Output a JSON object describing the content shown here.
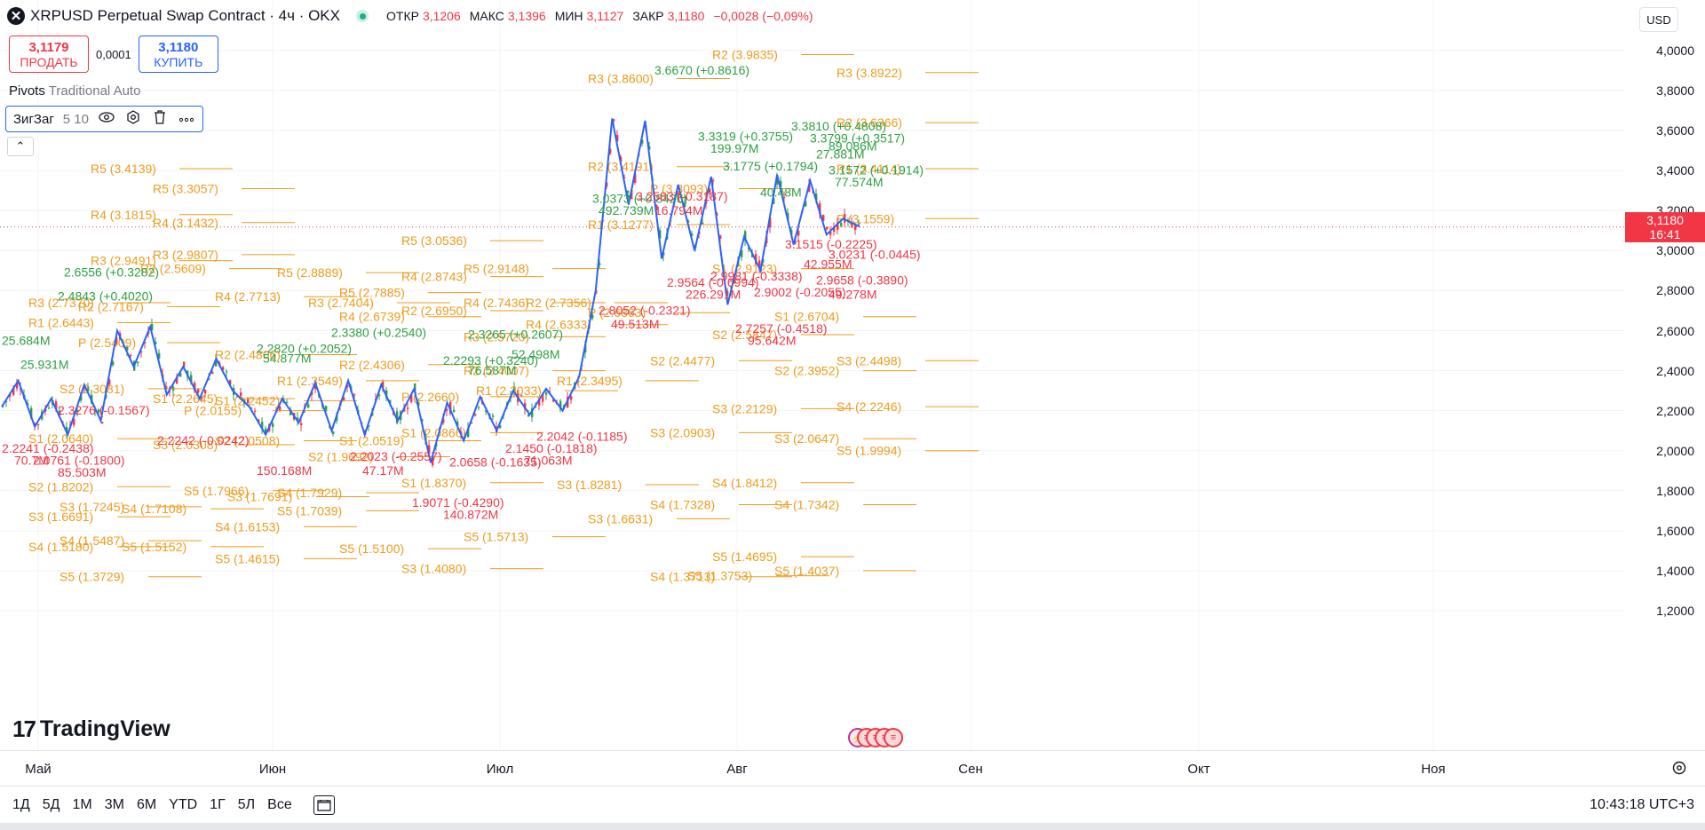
{
  "symbol": {
    "icon": "xrp-logo-icon",
    "logo_glyph": "✕",
    "title": "XRPUSD Perpetual Swap Contract · 4ч · OKX",
    "open_label": "ОТКР",
    "open": "3,1206",
    "high_label": "МАКС",
    "high": "3,1396",
    "low_label": "МИН",
    "low": "3,1127",
    "close_label": "ЗАКР",
    "close": "3,1180",
    "change": "−0,0028 (−0,09%)"
  },
  "trade": {
    "sell_price": "3,1179",
    "sell_label": "ПРОДАТЬ",
    "spread": "0,0001",
    "buy_price": "3,1180",
    "buy_label": "КУПИТЬ"
  },
  "indicators": {
    "pivots_name": "Pivots",
    "pivots_params": "Traditional Auto",
    "zigzag_name": "ЗигЗаг",
    "zigzag_params": "5 10",
    "icons": [
      "eye-icon",
      "settings-icon",
      "trash-icon",
      "more-icon"
    ],
    "collapse_glyph": "⌃"
  },
  "currency": "USD",
  "price_axis": {
    "ticks": [
      "4,0000",
      "3,8000",
      "3,6000",
      "3,4000",
      "3,2000",
      "3,0000",
      "2,8000",
      "2,6000",
      "2,4000",
      "2,2000",
      "2,0000",
      "1,8000",
      "1,6000",
      "1,4000",
      "1,2000"
    ],
    "current_price": "3,1180",
    "countdown": "16:41"
  },
  "time_axis": {
    "ticks": [
      "Май",
      "Июн",
      "Июл",
      "Авг",
      "Сен",
      "Окт",
      "Ноя"
    ]
  },
  "bottom_bar": {
    "ranges": [
      "1Д",
      "5Д",
      "1М",
      "3М",
      "6М",
      "YTD",
      "1Г",
      "5Л",
      "Все"
    ],
    "clock": "10:43:18 UTC+3"
  },
  "branding": {
    "logo_text": "TradingView",
    "logo_mark": "17"
  },
  "colors": {
    "up": "#2ea043",
    "down": "#f23645",
    "pivot": "#ef9b1c",
    "zigzag": "#2962ff",
    "accent": "#2962ff"
  },
  "chart_data": {
    "type": "candlestick",
    "pivot_labels": [
      {
        "text": "R5 (3.4139)",
        "x": 1,
        "y": 3.41
      },
      {
        "text": "R5 (3.3057)",
        "x": 2,
        "y": 3.31
      },
      {
        "text": "R4 (3.1815)",
        "x": 1,
        "y": 3.18
      },
      {
        "text": "R4 (3.1432)",
        "x": 2,
        "y": 3.14
      },
      {
        "text": "R3 (2.9491)",
        "x": 1,
        "y": 2.95
      },
      {
        "text": "R3 (2.9807)",
        "x": 2,
        "y": 2.98
      },
      {
        "text": "R5 (2.8889)",
        "x": 4,
        "y": 2.89
      },
      {
        "text": "R5 (2.7885)",
        "x": 5,
        "y": 2.79
      },
      {
        "text": "R4 (2.8743)",
        "x": 6,
        "y": 2.87
      },
      {
        "text": "R4 (2.7436)",
        "x": 7,
        "y": 2.74
      },
      {
        "text": "R5 (3.0536)",
        "x": 6,
        "y": 3.05
      },
      {
        "text": "R5 (2.9148)",
        "x": 7,
        "y": 2.91
      },
      {
        "text": "R3 (3.8600)",
        "x": 9,
        "y": 3.86
      },
      {
        "text": "R2 (3.4191)",
        "x": 9,
        "y": 3.42
      },
      {
        "text": "R1 (3.1277)",
        "x": 9,
        "y": 3.13
      },
      {
        "text": "R2 (3.9835)",
        "x": 11,
        "y": 3.98
      },
      {
        "text": "R3 (3.8922)",
        "x": 13,
        "y": 3.89
      },
      {
        "text": "R2 (3.6366)",
        "x": 13,
        "y": 3.64
      },
      {
        "text": "R1 (3.4114)",
        "x": 13,
        "y": 3.41
      },
      {
        "text": "P (3.1559)",
        "x": 13,
        "y": 3.16
      },
      {
        "text": "P (3.3093)",
        "x": 10,
        "y": 3.31
      },
      {
        "text": "S1 (2.9123)",
        "x": 11,
        "y": 2.91
      },
      {
        "text": "S1 (2.6704)",
        "x": 12,
        "y": 2.67
      },
      {
        "text": "S2 (2.5847)",
        "x": 11,
        "y": 2.58
      },
      {
        "text": "S2 (2.3952)",
        "x": 12,
        "y": 2.4
      },
      {
        "text": "S3 (2.4498)",
        "x": 13,
        "y": 2.45
      },
      {
        "text": "S4 (2.2246)",
        "x": 13,
        "y": 2.22
      },
      {
        "text": "S5 (1.9994)",
        "x": 13,
        "y": 2.0
      },
      {
        "text": "S3 (2.2129)",
        "x": 11,
        "y": 2.21
      },
      {
        "text": "S3 (2.0647)",
        "x": 12,
        "y": 2.06
      },
      {
        "text": "S3 (2.0903)",
        "x": 10,
        "y": 2.09
      },
      {
        "text": "S4 (1.8412)",
        "x": 11,
        "y": 1.84
      },
      {
        "text": "S4 (1.7342)",
        "x": 12,
        "y": 1.73
      },
      {
        "text": "S4 (1.7328)",
        "x": 10,
        "y": 1.73
      },
      {
        "text": "S3 (1.6631)",
        "x": 9,
        "y": 1.66
      },
      {
        "text": "S5 (1.5713)",
        "x": 7,
        "y": 1.57
      },
      {
        "text": "S5 (1.4695)",
        "x": 11,
        "y": 1.47
      },
      {
        "text": "S5 (1.4037)",
        "x": 12,
        "y": 1.4
      },
      {
        "text": "S4 (1.3713)",
        "x": 10,
        "y": 1.37
      },
      {
        "text": "S5 (1.3753)",
        "x": 10.6,
        "y": 1.375
      },
      {
        "text": "S3 (1.4080)",
        "x": 6,
        "y": 1.41
      },
      {
        "text": "S5 (1.5100)",
        "x": 5,
        "y": 1.51
      },
      {
        "text": "S4 (1.6153)",
        "x": 3,
        "y": 1.62
      },
      {
        "text": "S5 (1.4615)",
        "x": 3,
        "y": 1.46
      },
      {
        "text": "S5 (1.7039)",
        "x": 4,
        "y": 1.7
      },
      {
        "text": "S5 (1.5152)",
        "x": 1.5,
        "y": 1.52
      },
      {
        "text": "S4 (1.5487)",
        "x": 0.5,
        "y": 1.55
      },
      {
        "text": "S5 (1.3729)",
        "x": 0.5,
        "y": 1.37
      },
      {
        "text": "S3 (1.7245)",
        "x": 0.5,
        "y": 1.72
      },
      {
        "text": "S4 (1.7108)",
        "x": 1.5,
        "y": 1.71
      },
      {
        "text": "S5 (1.7966)",
        "x": 2.5,
        "y": 1.8
      },
      {
        "text": "S3 (1.7691)",
        "x": 3.2,
        "y": 1.77
      },
      {
        "text": "S4 (1.7929)",
        "x": 4,
        "y": 1.79
      },
      {
        "text": "S1 (1.8370)",
        "x": 6,
        "y": 1.84
      },
      {
        "text": "S3 (1.8281)",
        "x": 8.5,
        "y": 1.83
      },
      {
        "text": "R4 (2.6333)",
        "x": 8,
        "y": 2.63
      },
      {
        "text": "R3 (2.5720)",
        "x": 7,
        "y": 2.57
      },
      {
        "text": "R2 (2.4007)",
        "x": 7,
        "y": 2.4
      },
      {
        "text": "R1 (2.3033)",
        "x": 7.2,
        "y": 2.3
      },
      {
        "text": "R1 (2.3495)",
        "x": 8.5,
        "y": 2.35
      },
      {
        "text": "R1 (2.3549)",
        "x": 4,
        "y": 2.35
      },
      {
        "text": "R2 (2.6950)",
        "x": 6,
        "y": 2.7
      },
      {
        "text": "R4 (2.6739)",
        "x": 5,
        "y": 2.67
      },
      {
        "text": "R4 (2.7713)",
        "x": 3,
        "y": 2.77
      },
      {
        "text": "R2 (2.4806)",
        "x": 3,
        "y": 2.48
      },
      {
        "text": "S1 (2.2452)",
        "x": 3,
        "y": 2.25
      },
      {
        "text": "S2 (2.0508)",
        "x": 3,
        "y": 2.05
      },
      {
        "text": "S3 (2.0308)",
        "x": 2,
        "y": 2.03
      },
      {
        "text": "R2 (2.4306)",
        "x": 5,
        "y": 2.43
      },
      {
        "text": "S2 (1.9692)",
        "x": 4.5,
        "y": 1.97
      },
      {
        "text": "S1 (2.0519)",
        "x": 5,
        "y": 2.05
      },
      {
        "text": "S1 (2.0866)",
        "x": 6,
        "y": 2.09
      },
      {
        "text": "P (2.2660)",
        "x": 6,
        "y": 2.27
      },
      {
        "text": "S2 (2.4477)",
        "x": 10,
        "y": 2.45
      },
      {
        "text": "P (2.6863)",
        "x": 9,
        "y": 2.69
      },
      {
        "text": "R2 (2.7356)",
        "x": 8,
        "y": 2.74
      },
      {
        "text": "R3 (2.7404)",
        "x": 4.5,
        "y": 2.74
      },
      {
        "text": "R2 (2.5609)",
        "x": 1.8,
        "y": 2.91
      },
      {
        "text": "R3 (2.7370)",
        "x": 0,
        "y": 2.74
      },
      {
        "text": "R2 (2.7167)",
        "x": 0.8,
        "y": 2.72
      },
      {
        "text": "S2 (2.3081)",
        "x": 0.5,
        "y": 2.31
      },
      {
        "text": "S1 (2.0640)",
        "x": 0,
        "y": 2.06
      },
      {
        "text": "S2 (1.8202)",
        "x": 0,
        "y": 1.82
      },
      {
        "text": "S3 (1.6691)",
        "x": 0,
        "y": 1.67
      },
      {
        "text": "S4 (1.5180)",
        "x": 0,
        "y": 1.52
      },
      {
        "text": "R1 (2.6443)",
        "x": 0,
        "y": 2.64
      },
      {
        "text": "P (2.5409)",
        "x": 0.8,
        "y": 2.54
      },
      {
        "text": "S1 (2.2645)",
        "x": 2,
        "y": 2.26
      },
      {
        "text": "P (2.0155)",
        "x": 2.5,
        "y": 2.2
      }
    ],
    "zigzag_labels": [
      {
        "text": "3.6670 (+0.8616)",
        "x": 10.5,
        "y": 3.88,
        "dir": "up"
      },
      {
        "text": "3.3319 (+0.3755)",
        "x": 11.2,
        "y": 3.55,
        "dir": "up"
      },
      {
        "text": "199.97M",
        "x": 11.4,
        "y": 3.49,
        "dir": "up"
      },
      {
        "text": "3.3810 (+0.4808)",
        "x": 12.7,
        "y": 3.6,
        "dir": "up"
      },
      {
        "text": "3.3799 (+0.3517)",
        "x": 13,
        "y": 3.54,
        "dir": "up"
      },
      {
        "text": "3.1775 (+0.1794)",
        "x": 11.6,
        "y": 3.4,
        "dir": "up"
      },
      {
        "text": "3.1572 (+0.1914)",
        "x": 13.3,
        "y": 3.38,
        "dir": "up"
      },
      {
        "text": "27.881M",
        "x": 13.1,
        "y": 3.46,
        "dir": "up"
      },
      {
        "text": "89.086M",
        "x": 13.3,
        "y": 3.5,
        "dir": "up"
      },
      {
        "text": "40.48M",
        "x": 12.2,
        "y": 3.27,
        "dir": "up"
      },
      {
        "text": "77.574M",
        "x": 13.4,
        "y": 3.32,
        "dir": "up"
      },
      {
        "text": "3.0373 (+0.8426)",
        "x": 9.5,
        "y": 3.24,
        "dir": "up"
      },
      {
        "text": "492.739M",
        "x": 9.6,
        "y": 3.18,
        "dir": "up"
      },
      {
        "text": "2.6556 (+0.3282)",
        "x": 1,
        "y": 2.87,
        "dir": "up"
      },
      {
        "text": "2.4843 (+0.4020)",
        "x": 0.9,
        "y": 2.75,
        "dir": "up"
      },
      {
        "text": "2.3380 (+0.2540)",
        "x": 5.3,
        "y": 2.57,
        "dir": "up"
      },
      {
        "text": "2.3265 (+0.2607)",
        "x": 7.5,
        "y": 2.56,
        "dir": "up"
      },
      {
        "text": "2.2820 (+0.2052)",
        "x": 4.1,
        "y": 2.49,
        "dir": "up"
      },
      {
        "text": "2.2293 (+0.3240)",
        "x": 7.1,
        "y": 2.43,
        "dir": "up"
      },
      {
        "text": "54.877M",
        "x": 4.2,
        "y": 2.44,
        "dir": "up"
      },
      {
        "text": "52.498M",
        "x": 8.2,
        "y": 2.46,
        "dir": "up"
      },
      {
        "text": "76.587M",
        "x": 7.5,
        "y": 2.38,
        "dir": "up"
      },
      {
        "text": "25.931M",
        "x": 0.3,
        "y": 2.41,
        "dir": "up"
      },
      {
        "text": "25.684M",
        "x": 0,
        "y": 2.53,
        "dir": "up"
      },
      {
        "text": "2.9564 (-0.6994)",
        "x": 10.7,
        "y": 2.82,
        "dir": "down"
      },
      {
        "text": "226.291M",
        "x": 11,
        "y": 2.76,
        "dir": "down"
      },
      {
        "text": "2.9981 (-0.3338)",
        "x": 11.4,
        "y": 2.85,
        "dir": "down"
      },
      {
        "text": "2.9658 (-0.3890)",
        "x": 13.1,
        "y": 2.83,
        "dir": "down"
      },
      {
        "text": "2.9002 (-0.2055)",
        "x": 12.1,
        "y": 2.77,
        "dir": "down"
      },
      {
        "text": "49.278M",
        "x": 13.3,
        "y": 2.76,
        "dir": "down"
      },
      {
        "text": "42.955M",
        "x": 12.9,
        "y": 2.91,
        "dir": "down"
      },
      {
        "text": "3.1515 (-0.2225)",
        "x": 12.6,
        "y": 3.01,
        "dir": "down"
      },
      {
        "text": "3.0231 (-0.0445)",
        "x": 13.3,
        "y": 2.96,
        "dir": "down"
      },
      {
        "text": "2.8052 (-0.2321)",
        "x": 9.6,
        "y": 2.68,
        "dir": "down"
      },
      {
        "text": "49.513M",
        "x": 9.8,
        "y": 2.61,
        "dir": "down"
      },
      {
        "text": "2.7257 (-0.4518)",
        "x": 11.8,
        "y": 2.59,
        "dir": "down"
      },
      {
        "text": "95.642M",
        "x": 12,
        "y": 2.53,
        "dir": "down"
      },
      {
        "text": "3.2583 (-0.3187)",
        "x": 10.2,
        "y": 3.25,
        "dir": "down"
      },
      {
        "text": "16.794M",
        "x": 10.5,
        "y": 3.18,
        "dir": "down"
      },
      {
        "text": "2.3276 (-0.1567)",
        "x": 0.9,
        "y": 2.18,
        "dir": "down"
      },
      {
        "text": "2.2242 (-0.0242)",
        "x": 2.5,
        "y": 2.03,
        "dir": "down"
      },
      {
        "text": "2.1450 (-0.1818)",
        "x": 8.1,
        "y": 1.99,
        "dir": "down"
      },
      {
        "text": "2.0658 (-0.1635)",
        "x": 7.2,
        "y": 1.92,
        "dir": "down"
      },
      {
        "text": "2.2042 (-0.1185)",
        "x": 8.6,
        "y": 2.05,
        "dir": "down"
      },
      {
        "text": "150.168M",
        "x": 4.1,
        "y": 1.88,
        "dir": "down"
      },
      {
        "text": "140.872M",
        "x": 7.1,
        "y": 1.66,
        "dir": "down"
      },
      {
        "text": "1.9071 (-0.4290)",
        "x": 6.6,
        "y": 1.72,
        "dir": "down"
      },
      {
        "text": "85.503M",
        "x": 0.9,
        "y": 1.87,
        "dir": "down"
      },
      {
        "text": "70.7M",
        "x": 0.2,
        "y": 1.93,
        "dir": "down"
      },
      {
        "text": "2.0761 (-0.1800)",
        "x": 0.5,
        "y": 1.93,
        "dir": "down"
      },
      {
        "text": "2.2023 (-0.2557)",
        "x": 5.6,
        "y": 1.95,
        "dir": "down"
      },
      {
        "text": "2.2241 (-0.2438)",
        "x": 0,
        "y": 1.99,
        "dir": "down"
      },
      {
        "text": "71.063M",
        "x": 8.4,
        "y": 1.93,
        "dir": "down"
      },
      {
        "text": "47.17M",
        "x": 5.8,
        "y": 1.88,
        "dir": "down"
      }
    ],
    "zigzag_path_prices": [
      2.22,
      2.35,
      2.12,
      2.26,
      2.08,
      2.33,
      2.15,
      2.6,
      2.42,
      2.62,
      2.28,
      2.42,
      2.26,
      2.46,
      2.3,
      2.22,
      2.08,
      2.26,
      2.14,
      2.34,
      2.1,
      2.35,
      2.08,
      2.33,
      2.15,
      2.31,
      1.94,
      2.24,
      2.05,
      2.27,
      2.1,
      2.3,
      2.18,
      2.31,
      2.2,
      2.37,
      2.8,
      3.66,
      3.23,
      3.65,
      2.96,
      3.33,
      3.0,
      3.37,
      2.73,
      3.07,
      2.9,
      3.38,
      3.03,
      3.35,
      3.08,
      3.16,
      3.12
    ]
  }
}
